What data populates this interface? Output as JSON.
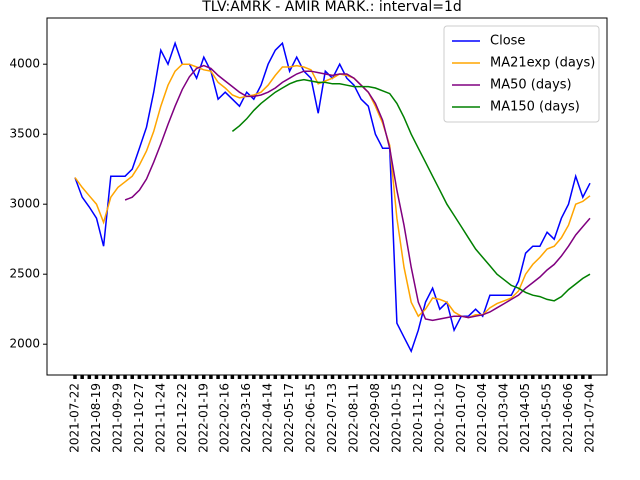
{
  "chart_data": {
    "type": "line",
    "title": "TLV:AMRK - AMIR MARK.: interval=1d",
    "categories": [
      "2021-07-22",
      null,
      null,
      "2021-08-19",
      null,
      null,
      "2021-09-29",
      null,
      null,
      "2021-10-27",
      null,
      null,
      "2021-11-24",
      null,
      null,
      "2021-12-22",
      null,
      null,
      "2022-01-19",
      null,
      null,
      "2022-02-16",
      null,
      null,
      "2022-03-16",
      null,
      null,
      "2022-04-14",
      null,
      null,
      "2022-05-17",
      null,
      null,
      "2022-06-15",
      null,
      null,
      "2022-07-13",
      null,
      null,
      "2022-08-11",
      null,
      null,
      "2022-09-08",
      null,
      null,
      "2020-10-15",
      null,
      null,
      "2020-11-12",
      null,
      null,
      "2020-12-10",
      null,
      null,
      "2021-01-07",
      null,
      null,
      "2021-02-04",
      null,
      null,
      "2021-03-04",
      null,
      null,
      "2021-04-05",
      null,
      null,
      "2021-05-05",
      null,
      null,
      "2021-06-06",
      null,
      null,
      "2021-07-04"
    ],
    "series": [
      {
        "name": "Close",
        "color": "#0000ff",
        "values": [
          3190,
          3050,
          2980,
          2900,
          2700,
          3200,
          3200,
          3200,
          3250,
          3400,
          3550,
          3800,
          4100,
          4000,
          4150,
          4000,
          4000,
          3900,
          4050,
          3950,
          3750,
          3800,
          3750,
          3700,
          3800,
          3750,
          3850,
          4000,
          4100,
          4150,
          3950,
          4050,
          3950,
          3900,
          3650,
          3950,
          3900,
          4000,
          3900,
          3850,
          3750,
          3700,
          3500,
          3400,
          3400,
          2150,
          2050,
          1950,
          2100,
          2300,
          2400,
          2250,
          2300,
          2100,
          2200,
          2200,
          2250,
          2200,
          2350,
          2350,
          2350,
          2350,
          2450,
          2650,
          2700,
          2700,
          2800,
          2750,
          2900,
          3000,
          3200,
          3050,
          3150
        ]
      },
      {
        "name": "MA21exp (days)",
        "color": "#ffa500",
        "values": [
          3190,
          3120,
          3060,
          3000,
          2870,
          3050,
          3120,
          3160,
          3200,
          3280,
          3380,
          3520,
          3700,
          3850,
          3950,
          4000,
          4000,
          3980,
          3960,
          3950,
          3870,
          3830,
          3780,
          3760,
          3770,
          3780,
          3800,
          3850,
          3920,
          3980,
          3980,
          3990,
          3980,
          3960,
          3860,
          3880,
          3900,
          3930,
          3920,
          3900,
          3850,
          3800,
          3700,
          3580,
          3420,
          2900,
          2550,
          2300,
          2200,
          2250,
          2330,
          2320,
          2300,
          2230,
          2200,
          2190,
          2210,
          2210,
          2260,
          2290,
          2310,
          2330,
          2380,
          2500,
          2570,
          2620,
          2680,
          2700,
          2760,
          2850,
          3000,
          3020,
          3060
        ]
      },
      {
        "name": "MA50 (days)",
        "color": "#800080",
        "values": [
          null,
          null,
          null,
          null,
          null,
          null,
          null,
          3030,
          3050,
          3100,
          3180,
          3300,
          3430,
          3570,
          3700,
          3820,
          3910,
          3970,
          3990,
          3970,
          3920,
          3880,
          3840,
          3800,
          3770,
          3770,
          3780,
          3800,
          3830,
          3870,
          3900,
          3930,
          3950,
          3950,
          3940,
          3930,
          3920,
          3930,
          3930,
          3900,
          3850,
          3800,
          3720,
          3600,
          3400,
          3100,
          2850,
          2550,
          2300,
          2180,
          2170,
          2180,
          2190,
          2200,
          2200,
          2190,
          2200,
          2210,
          2230,
          2260,
          2290,
          2320,
          2350,
          2400,
          2440,
          2480,
          2530,
          2570,
          2630,
          2700,
          2780,
          2840,
          2900
        ]
      },
      {
        "name": "MA150 (days)",
        "color": "#008000",
        "values": [
          null,
          null,
          null,
          null,
          null,
          null,
          null,
          null,
          null,
          null,
          null,
          null,
          null,
          null,
          null,
          null,
          null,
          null,
          null,
          null,
          null,
          null,
          3520,
          3560,
          3610,
          3670,
          3720,
          3760,
          3800,
          3830,
          3860,
          3880,
          3890,
          3880,
          3870,
          3870,
          3860,
          3860,
          3850,
          3840,
          3840,
          3840,
          3830,
          3810,
          3790,
          3720,
          3620,
          3500,
          3400,
          3300,
          3200,
          3100,
          3000,
          2920,
          2840,
          2760,
          2680,
          2620,
          2560,
          2500,
          2460,
          2420,
          2400,
          2370,
          2350,
          2340,
          2320,
          2310,
          2340,
          2390,
          2430,
          2470,
          2500
        ]
      }
    ],
    "ylim": [
      1780,
      4330
    ],
    "yticks": [
      2000,
      2500,
      3000,
      3500,
      4000
    ],
    "legend": "upper right"
  }
}
